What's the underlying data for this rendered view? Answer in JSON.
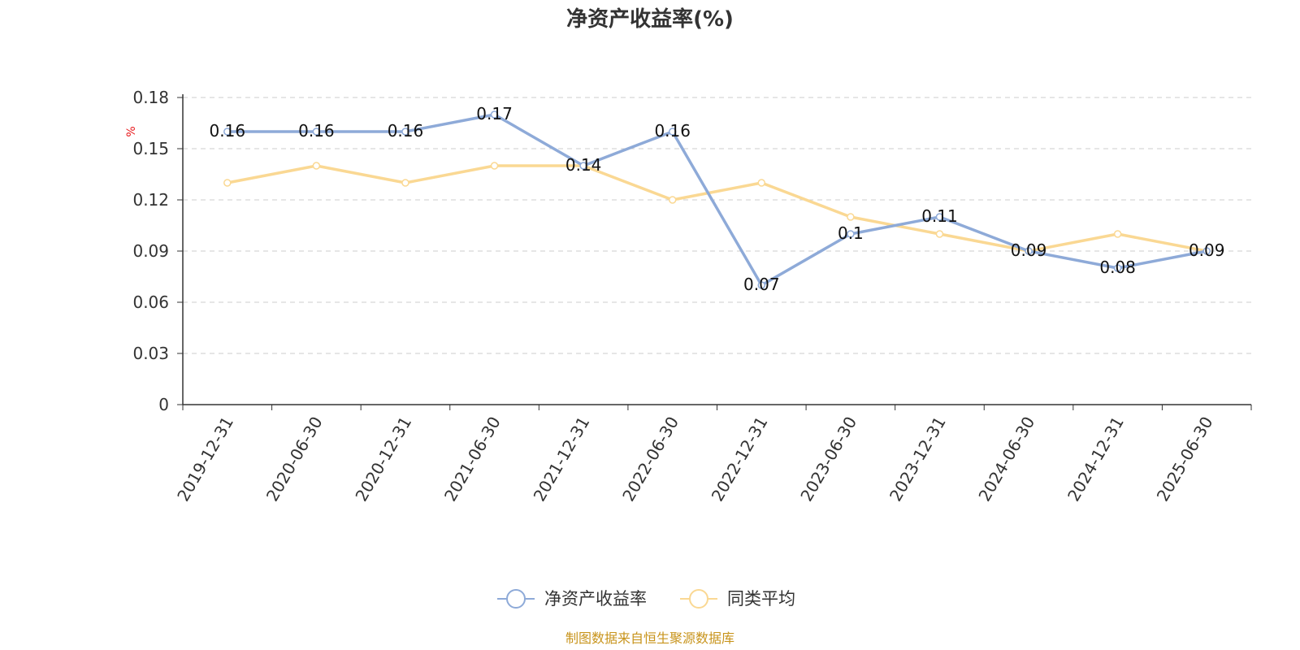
{
  "chart_data": {
    "type": "line",
    "title": "净资产收益率(%)",
    "ylabel": "%",
    "xlabel": "",
    "categories": [
      "2019-12-31",
      "2020-06-30",
      "2020-12-31",
      "2021-06-30",
      "2021-12-31",
      "2022-06-30",
      "2022-12-31",
      "2023-06-30",
      "2023-12-31",
      "2024-06-30",
      "2024-12-31",
      "2025-06-30"
    ],
    "ylim": [
      0,
      0.18
    ],
    "yticks": [
      "0",
      "0.03",
      "0.06",
      "0.09",
      "0.12",
      "0.15",
      "0.18"
    ],
    "grid": true,
    "legend_position": "bottom",
    "series": [
      {
        "name": "净资产收益率",
        "color": "#8eaad8",
        "values": [
          0.16,
          0.16,
          0.16,
          0.17,
          0.14,
          0.16,
          0.07,
          0.1,
          0.11,
          0.09,
          0.08,
          0.09
        ],
        "labels": [
          "0.16",
          "0.16",
          "0.16",
          "0.17",
          "0.14",
          "0.16",
          "0.07",
          "0.1",
          "0.11",
          "0.09",
          "0.08",
          "0.09"
        ]
      },
      {
        "name": "同类平均",
        "color": "#fad893",
        "values": [
          0.13,
          0.14,
          0.13,
          0.14,
          0.14,
          0.12,
          0.13,
          0.11,
          0.1,
          0.09,
          0.1,
          0.09
        ]
      }
    ]
  },
  "source_text": "制图数据来自恒生聚源数据库"
}
